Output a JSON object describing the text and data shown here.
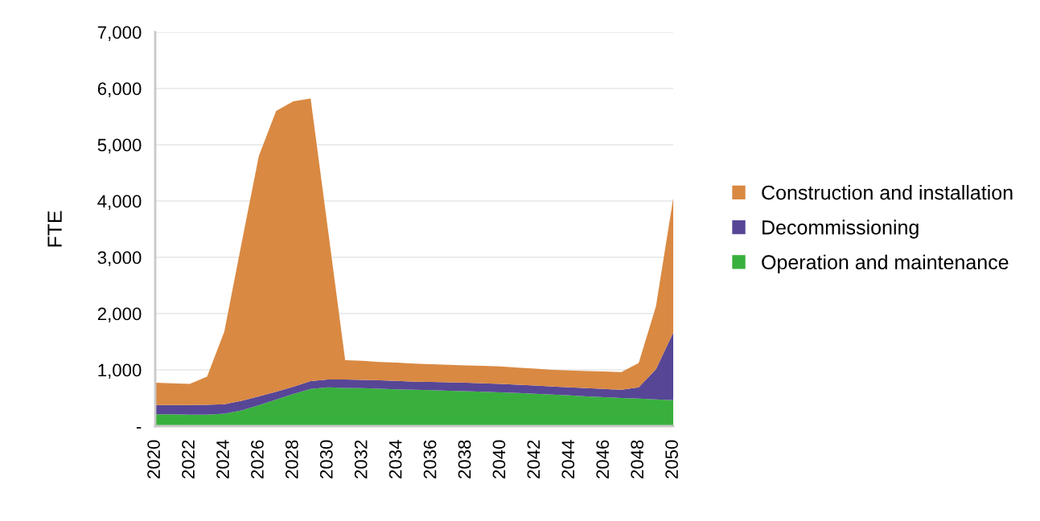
{
  "chart_data": {
    "type": "area",
    "stacked": true,
    "ylabel": "FTE",
    "x": [
      2020,
      2021,
      2022,
      2023,
      2024,
      2025,
      2026,
      2027,
      2028,
      2029,
      2030,
      2031,
      2032,
      2033,
      2034,
      2035,
      2036,
      2037,
      2038,
      2039,
      2040,
      2041,
      2042,
      2043,
      2044,
      2045,
      2046,
      2047,
      2048,
      2049,
      2050
    ],
    "series": [
      {
        "name": "Operation and maintenance",
        "color": "#39b03e",
        "values": [
          210,
          210,
          205,
          205,
          220,
          280,
          370,
          470,
          570,
          660,
          690,
          680,
          675,
          665,
          655,
          645,
          640,
          630,
          620,
          610,
          600,
          590,
          575,
          560,
          545,
          530,
          515,
          500,
          490,
          475,
          460
        ]
      },
      {
        "name": "Decommissioning",
        "color": "#574696",
        "values": [
          165,
          165,
          170,
          173,
          170,
          170,
          160,
          140,
          130,
          140,
          140,
          150,
          145,
          150,
          150,
          145,
          145,
          150,
          150,
          150,
          150,
          145,
          145,
          145,
          145,
          145,
          145,
          145,
          200,
          535,
          1200
        ]
      },
      {
        "name": "Construction and installation",
        "color": "#d98942",
        "values": [
          395,
          385,
          375,
          502,
          1290,
          2800,
          4270,
          4990,
          5070,
          5020,
          2670,
          340,
          340,
          325,
          325,
          320,
          315,
          310,
          310,
          310,
          310,
          305,
          300,
          295,
          300,
          305,
          310,
          315,
          430,
          1120,
          2390
        ]
      }
    ],
    "xlim": [
      2020,
      2050
    ],
    "xticks": [
      2020,
      2022,
      2024,
      2026,
      2028,
      2030,
      2032,
      2034,
      2036,
      2038,
      2040,
      2042,
      2044,
      2046,
      2048,
      2050
    ],
    "ylim": [
      0,
      7000
    ],
    "yticks": [
      {
        "value": 0,
        "label": "-"
      },
      {
        "value": 1000,
        "label": "1,000"
      },
      {
        "value": 2000,
        "label": "2,000"
      },
      {
        "value": 3000,
        "label": "3,000"
      },
      {
        "value": 4000,
        "label": "4,000"
      },
      {
        "value": 5000,
        "label": "5,000"
      },
      {
        "value": 6000,
        "label": "6,000"
      },
      {
        "value": 7000,
        "label": "7,000"
      }
    ],
    "grid": "y",
    "legend": "right"
  }
}
